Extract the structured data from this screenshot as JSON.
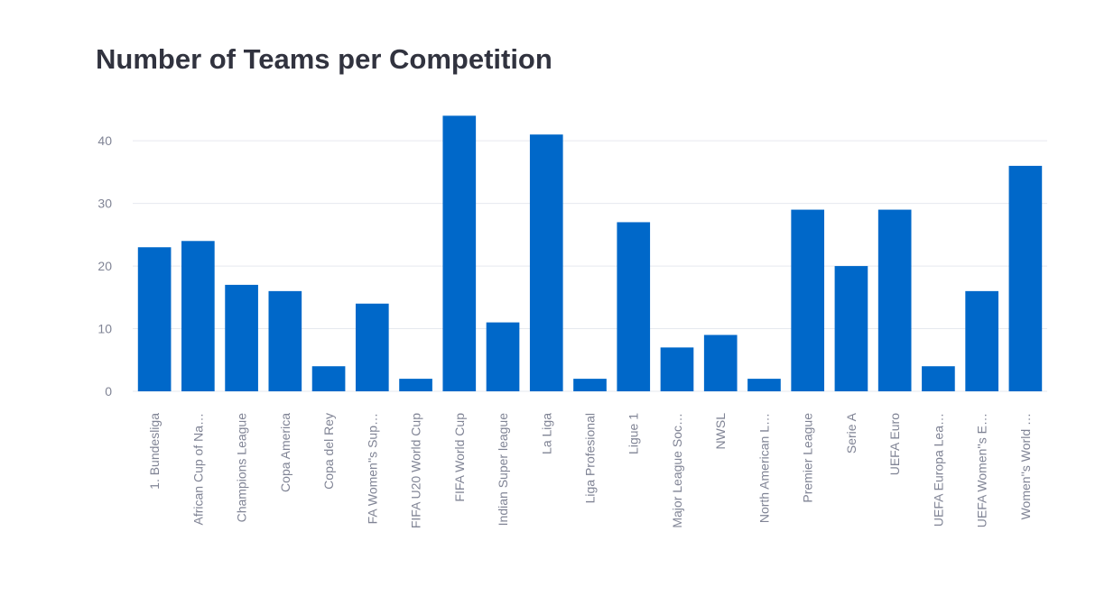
{
  "chart_data": {
    "type": "bar",
    "title": "Number of Teams per Competition",
    "xlabel": "",
    "ylabel": "",
    "categories": [
      "1. Bundesliga",
      "African Cup of Na…",
      "Champions League",
      "Copa America",
      "Copa del Rey",
      "FA Women''s Sup…",
      "FIFA U20 World Cup",
      "FIFA World Cup",
      "Indian Super league",
      "La Liga",
      "Liga Profesional",
      "Ligue 1",
      "Major League Soc…",
      "NWSL",
      "North American L…",
      "Premier League",
      "Serie A",
      "UEFA Euro",
      "UEFA Europa Lea…",
      "UEFA Women''s E…",
      "Women''s World …"
    ],
    "values": [
      23,
      24,
      17,
      16,
      4,
      14,
      2,
      44,
      11,
      41,
      2,
      27,
      7,
      9,
      2,
      29,
      20,
      29,
      4,
      16,
      36
    ],
    "yticks": [
      0,
      10,
      20,
      30,
      40
    ],
    "ylim": [
      0,
      46.5
    ],
    "grid": true,
    "legend": "none",
    "bar_color": "#0068c9",
    "grid_color": "#e6e9ef",
    "tick_color": "#808495",
    "title_color": "#31333f"
  }
}
